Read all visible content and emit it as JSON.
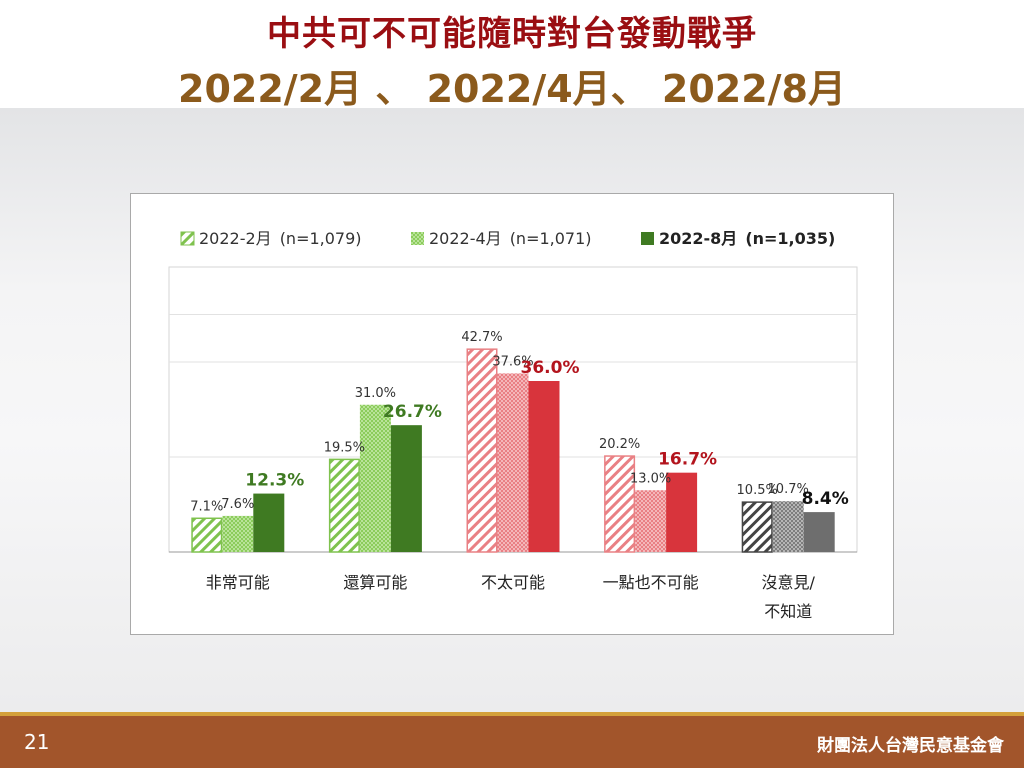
{
  "slide": {
    "title_line1": "中共可不可能隨時對台發動戰爭",
    "title_line2": "2022/2月 、 2022/4月、 2022/8月",
    "page_number": "21",
    "organization": "財團法人台灣民意基金會"
  },
  "colors": {
    "title_red": "#9a0e12",
    "title_brown": "#8b5a1c",
    "footer": "#a2552b",
    "footer_line": "#d4a03a",
    "green_dark": "#3f7a22",
    "green_light": "#7fc24e",
    "red_dark": "#d8343c",
    "red_light": "#e98084",
    "gray_dark": "#6e6e6e",
    "gray_light": "#8f8f8f"
  },
  "chart_data": {
    "type": "bar",
    "categories": [
      "非常可能",
      "還算可能",
      "不太可能",
      "一點也不可能",
      "沒意見/不知道"
    ],
    "category_lines": [
      [
        "非常可能"
      ],
      [
        "還算可能"
      ],
      [
        "不太可能"
      ],
      [
        "一點也不可能"
      ],
      [
        "沒意見/",
        "不知道"
      ]
    ],
    "series": [
      {
        "name": "2022-2月 (n=1,079)",
        "values": [
          7.1,
          19.5,
          42.7,
          20.2,
          10.5
        ],
        "labels": [
          "7.1%",
          "19.5%",
          "42.7%",
          "20.2%",
          "10.5%"
        ]
      },
      {
        "name": "2022-4月 (n=1,071)",
        "values": [
          7.6,
          31.0,
          37.6,
          13.0,
          10.7
        ],
        "labels": [
          "7.6%",
          "31.0%",
          "37.6%",
          "13.0%",
          "10.7%"
        ]
      },
      {
        "name": "2022-8月 (n=1,035)",
        "values": [
          12.3,
          26.7,
          36.0,
          16.7,
          8.4
        ],
        "labels": [
          "12.3%",
          "26.7%",
          "36.0%",
          "16.7%",
          "8.4%"
        ]
      }
    ],
    "legend": [
      {
        "prefix": "2022-2月",
        "n": "(n=1,079)"
      },
      {
        "prefix": "2022-4月",
        "n": "(n=1,071)"
      },
      {
        "prefix": "2022-8月",
        "n": "(n=1,035)"
      }
    ],
    "legend_position": "top",
    "ylim": [
      0,
      60
    ],
    "grid": true
  }
}
